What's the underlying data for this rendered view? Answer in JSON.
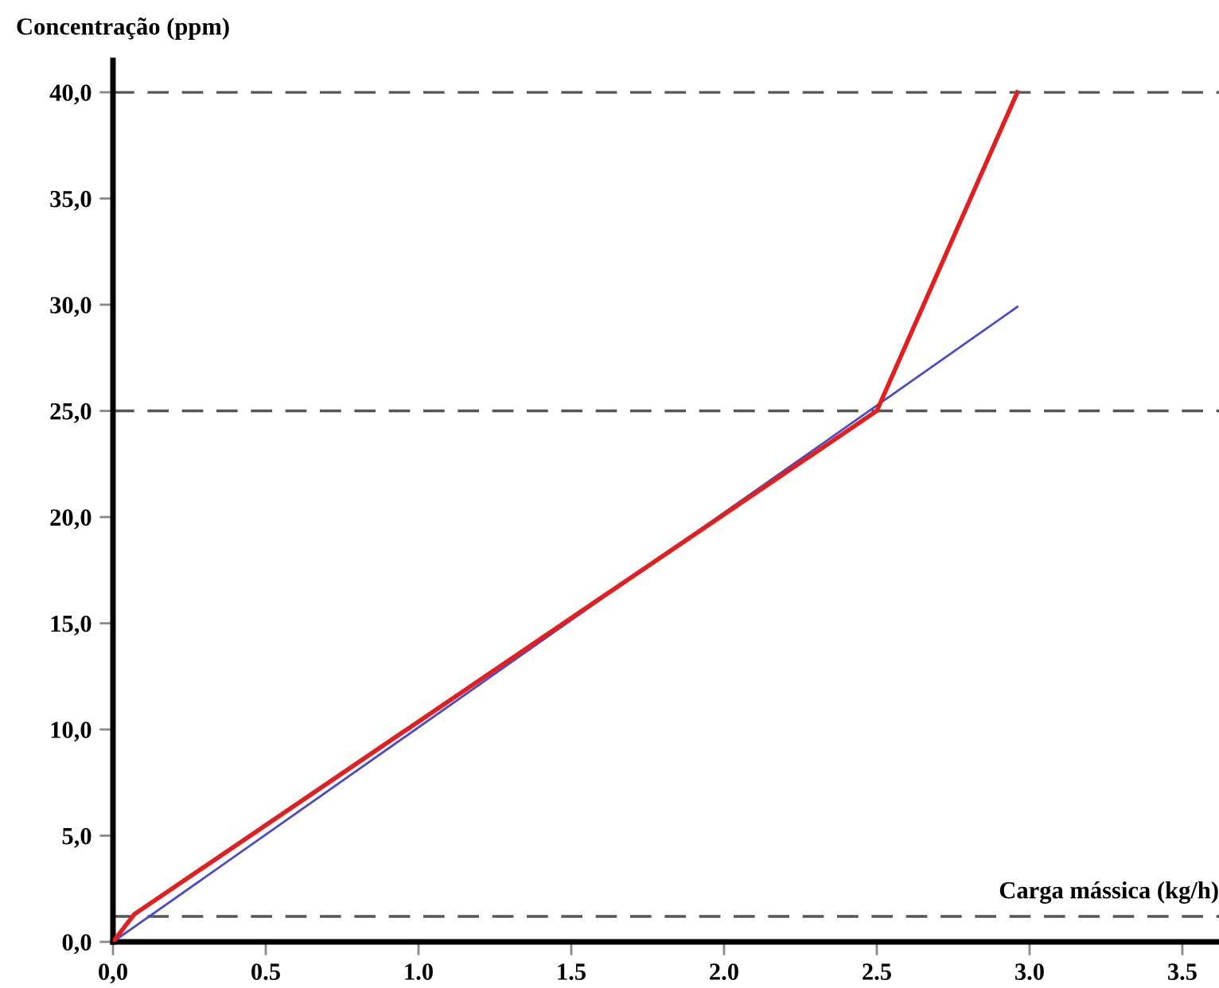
{
  "chart_data": {
    "type": "line",
    "xlabel": "Carga mássica (kg/h)",
    "ylabel": "Concentração (ppm)",
    "xlim": [
      0,
      3.62
    ],
    "ylim": [
      0,
      41.5
    ],
    "xticks": [
      {
        "value": 0,
        "label": "0,0"
      },
      0.5,
      {
        "value": 1,
        "label": "1.0"
      },
      1.5,
      {
        "value": 2,
        "label": "2.0"
      },
      2.5,
      {
        "value": 3,
        "label": "3.0"
      },
      3.5
    ],
    "yticks": [
      {
        "value": 0,
        "label": "0,0"
      },
      {
        "value": 5,
        "label": "5,0"
      },
      {
        "value": 10,
        "label": "10,0"
      },
      {
        "value": 15,
        "label": "15,0"
      },
      {
        "value": 20,
        "label": "20,0"
      },
      {
        "value": 25,
        "label": "25,0"
      },
      {
        "value": 30,
        "label": "30,0"
      },
      {
        "value": 35,
        "label": "35,0"
      },
      {
        "value": 40,
        "label": "40,0"
      }
    ],
    "series": [
      {
        "color": "#4a4ac8",
        "x": [
          0,
          2.96
        ],
        "values": [
          0,
          29.9
        ]
      },
      {
        "color": "#e02020",
        "x": [
          0,
          0.07,
          2.5,
          2.96
        ],
        "values": [
          0,
          1.3,
          25,
          40
        ]
      }
    ],
    "ref_lines": [
      {
        "axis": "y",
        "value": 40,
        "color": "#555555",
        "line_style": "dashed"
      },
      {
        "axis": "y",
        "value": 25,
        "color": "#555555",
        "line_style": "dashed"
      },
      {
        "axis": "y",
        "value": 1.2,
        "color": "#555555",
        "line_style": "dashed"
      }
    ],
    "grid": false,
    "legend": false,
    "marker": "none",
    "line_style": "solid"
  }
}
